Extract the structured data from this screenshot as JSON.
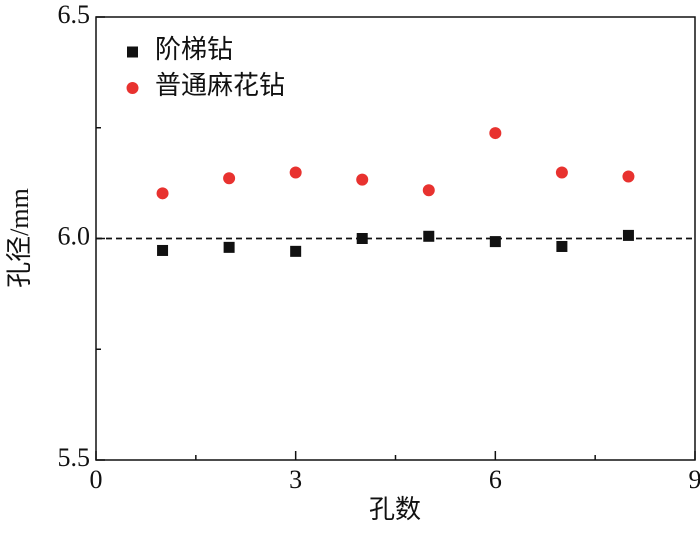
{
  "chart_data": {
    "type": "scatter",
    "x_label": "孔数",
    "y_label": "孔径/mm",
    "xlim": [
      0,
      9
    ],
    "xticks": [
      0,
      3,
      6,
      9
    ],
    "xminor": [
      1.5,
      4.5,
      7.5
    ],
    "ylim": [
      5.5,
      6.5
    ],
    "yticks": [
      5.5,
      6.0,
      6.5
    ],
    "yminor": [
      5.75,
      6.25
    ],
    "reference_line": 6.0,
    "legend": "upper-left",
    "series": [
      {
        "name": "阶梯钻",
        "color": "#111111",
        "marker": "square",
        "x": [
          1,
          2,
          3,
          4,
          5,
          6,
          7,
          8
        ],
        "values": [
          5.973,
          5.98,
          5.971,
          6.0,
          6.005,
          5.993,
          5.982,
          6.007
        ]
      },
      {
        "name": "普通麻花钻",
        "color": "#e8322f",
        "marker": "circle",
        "x": [
          1,
          2,
          3,
          4,
          5,
          6,
          7,
          8
        ],
        "values": [
          6.102,
          6.136,
          6.149,
          6.133,
          6.109,
          6.238,
          6.149,
          6.14
        ]
      }
    ]
  }
}
